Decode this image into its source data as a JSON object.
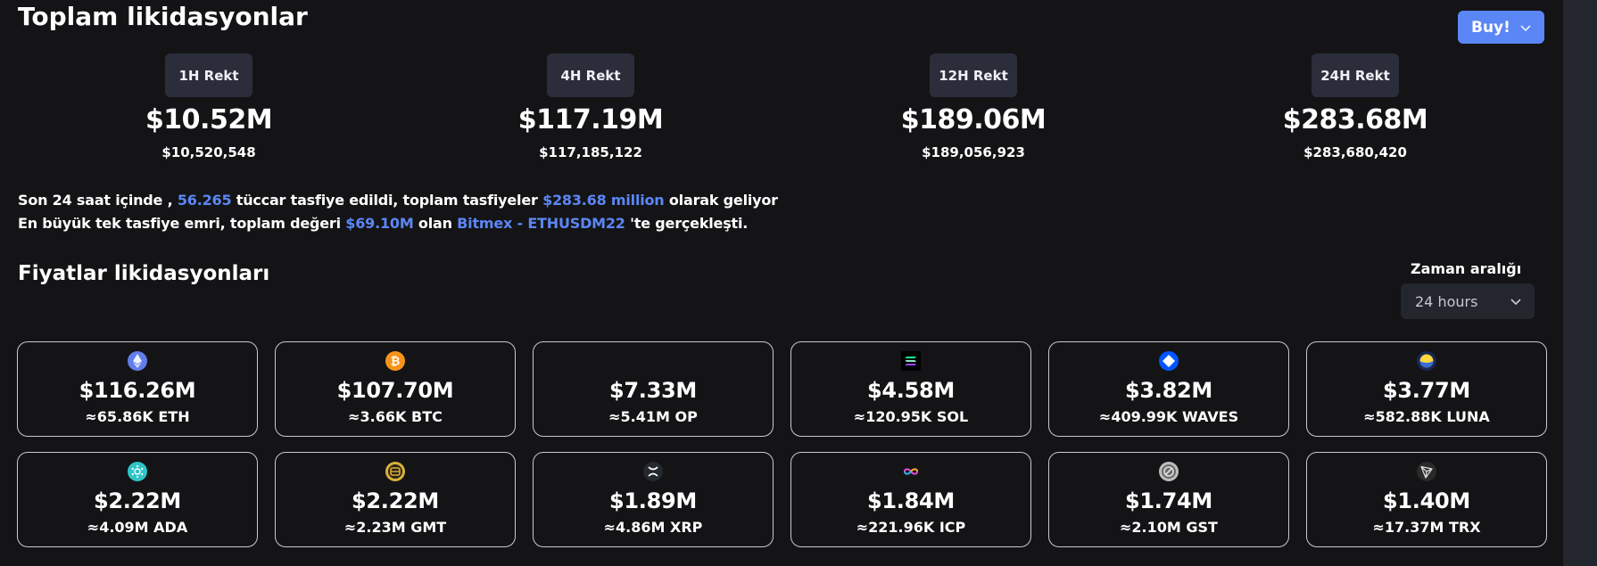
{
  "header": {
    "title": "Toplam likidasyonlar",
    "buy_label": "Buy!"
  },
  "rekt": [
    {
      "label": "1H Rekt",
      "value": "$10.52M",
      "exact": "$10,520,548"
    },
    {
      "label": "4H Rekt",
      "value": "$117.19M",
      "exact": "$117,185,122"
    },
    {
      "label": "12H Rekt",
      "value": "$189.06M",
      "exact": "$189,056,923"
    },
    {
      "label": "24H Rekt",
      "value": "$283.68M",
      "exact": "$283,680,420"
    }
  ],
  "summary": {
    "line1_a": "Son 24 saat içinde ,",
    "traders": "56.265",
    "line1_b": "tüccar tasfiye edildi, toplam tasfiyeler",
    "total": "$283.68 million",
    "line1_c": "olarak geliyor",
    "line2_a": "En büyük tek tasfiye emri, toplam değeri",
    "largest": "$69.10M",
    "line2_b": "olan",
    "exchange": "Bitmex - ETHUSDM22",
    "line2_c": "'te gerçekleşti."
  },
  "prices": {
    "title": "Fiyatlar likidasyonları",
    "range_label": "Zaman aralığı",
    "range_value": "24 hours"
  },
  "coins": [
    {
      "symbol": "eth-icon",
      "value": "$116.26M",
      "amount": "≈65.86K ETH",
      "color": "#627eea"
    },
    {
      "symbol": "btc-icon",
      "value": "$107.70M",
      "amount": "≈3.66K BTC",
      "color": "#f7931a"
    },
    {
      "symbol": "op-icon",
      "value": "$7.33M",
      "amount": "≈5.41M OP",
      "color": "#ff0420"
    },
    {
      "symbol": "sol-icon",
      "value": "$4.58M",
      "amount": "≈120.95K SOL",
      "color": "#000000"
    },
    {
      "symbol": "waves-icon",
      "value": "$3.82M",
      "amount": "≈409.99K WAVES",
      "color": "#0155ff"
    },
    {
      "symbol": "luna-icon",
      "value": "$3.77M",
      "amount": "≈582.88K LUNA",
      "color": "#172852"
    },
    {
      "symbol": "ada-icon",
      "value": "$2.22M",
      "amount": "≈4.09M ADA",
      "color": "#2fc6c8"
    },
    {
      "symbol": "gmt-icon",
      "value": "$2.22M",
      "amount": "≈2.23M GMT",
      "color": "#d9b13b"
    },
    {
      "symbol": "xrp-icon",
      "value": "$1.89M",
      "amount": "≈4.86M XRP",
      "color": "#23292f"
    },
    {
      "symbol": "icp-icon",
      "value": "$1.84M",
      "amount": "≈221.96K ICP",
      "color": "#3b00b9"
    },
    {
      "symbol": "gst-icon",
      "value": "$1.74M",
      "amount": "≈2.10M GST",
      "color": "#9e9e9e"
    },
    {
      "symbol": "trx-icon",
      "value": "$1.40M",
      "amount": "≈17.37M TRX",
      "color": "#2a2a2a"
    }
  ]
}
